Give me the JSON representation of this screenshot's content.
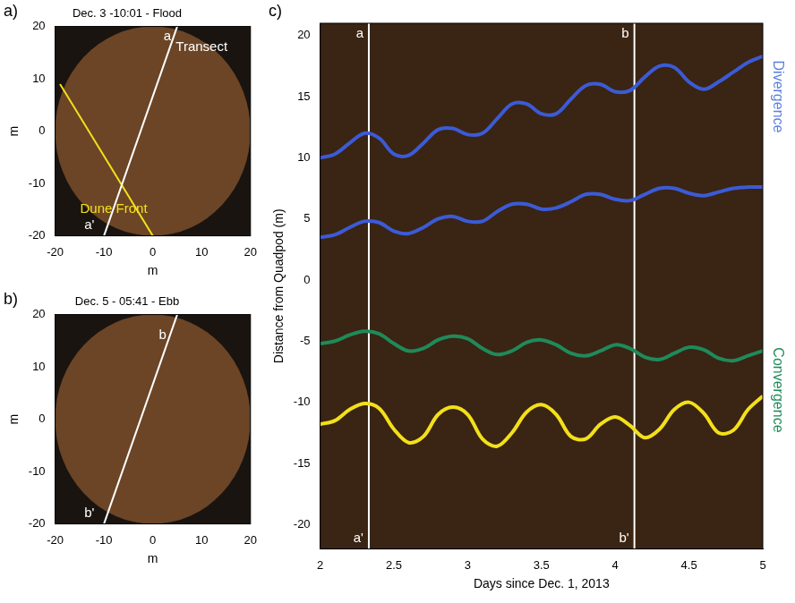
{
  "chart_data": [
    {
      "type": "line",
      "panel": "a)",
      "title": "Dec. 3 -10:01 - Flood",
      "x_label": "m",
      "y_label": "m",
      "xlim": [
        -20,
        20
      ],
      "xticks": [
        -20,
        -10,
        0,
        10,
        20
      ],
      "ylim": [
        -20,
        20
      ],
      "yticks": [
        -20,
        -10,
        0,
        10,
        20
      ],
      "grid": false,
      "legend": "none",
      "series": [
        {
          "color": "#ffffff",
          "x": [
            -10,
            5
          ],
          "values": [
            -20,
            20
          ]
        },
        {
          "color": "#f2e01a",
          "x": [
            -19,
            0
          ],
          "values": [
            9,
            -20
          ]
        }
      ],
      "annotations": [
        {
          "text": "a",
          "x": 3,
          "y": 18,
          "color": "#ffffff"
        },
        {
          "text": "Transect",
          "x": 10,
          "y": 16,
          "color": "#ffffff"
        },
        {
          "text": "a'",
          "x": -13,
          "y": -18,
          "color": "#ffffff"
        },
        {
          "text": "Dune Front",
          "x": -8,
          "y": -15,
          "color": "#f2e01a"
        }
      ]
    },
    {
      "type": "line",
      "panel": "b)",
      "title": "Dec. 5 - 05:41 - Ebb",
      "x_label": "m",
      "y_label": "m",
      "xlim": [
        -20,
        20
      ],
      "xticks": [
        -20,
        -10,
        0,
        10,
        20
      ],
      "ylim": [
        -20,
        20
      ],
      "yticks": [
        -20,
        -10,
        0,
        10,
        20
      ],
      "grid": false,
      "legend": "none",
      "series": [
        {
          "color": "#ffffff",
          "x": [
            -10,
            5
          ],
          "values": [
            -20,
            20
          ]
        }
      ],
      "annotations": [
        {
          "text": "b",
          "x": 2,
          "y": 16,
          "color": "#ffffff"
        },
        {
          "text": "b'",
          "x": -13,
          "y": -18,
          "color": "#ffffff"
        }
      ]
    },
    {
      "type": "line",
      "panel": "c)",
      "x_label": "Days since Dec. 1, 2013",
      "y_label": "Distance from Quadpod (m)",
      "xlim": [
        2,
        5
      ],
      "xticks": [
        2,
        2.5,
        3,
        3.5,
        4,
        4.5,
        5
      ],
      "ylim": [
        -22,
        21
      ],
      "yticks": [
        -20,
        -15,
        -10,
        -5,
        0,
        5,
        10,
        15,
        20
      ],
      "grid": false,
      "legend": "none",
      "x": [
        2.0,
        2.1,
        2.2,
        2.3,
        2.4,
        2.5,
        2.6,
        2.7,
        2.8,
        2.9,
        3.0,
        3.1,
        3.2,
        3.3,
        3.4,
        3.5,
        3.6,
        3.7,
        3.8,
        3.9,
        4.0,
        4.1,
        4.2,
        4.3,
        4.4,
        4.5,
        4.6,
        4.7,
        4.8,
        4.9,
        5.0
      ],
      "series": [
        {
          "color": "#3b5bd6",
          "values": [
            10.0,
            10.3,
            11.2,
            12.0,
            11.6,
            10.3,
            10.2,
            11.2,
            12.3,
            12.4,
            11.9,
            12.0,
            13.2,
            14.4,
            14.4,
            13.6,
            13.6,
            14.8,
            15.9,
            16.0,
            15.4,
            15.5,
            16.6,
            17.5,
            17.4,
            16.2,
            15.6,
            16.2,
            17.0,
            17.8,
            18.3
          ]
        },
        {
          "color": "#3b5bd6",
          "values": [
            3.5,
            3.7,
            4.3,
            4.8,
            4.7,
            4.0,
            3.8,
            4.3,
            5.0,
            5.2,
            4.8,
            4.8,
            5.6,
            6.2,
            6.2,
            5.8,
            5.9,
            6.4,
            7.0,
            7.0,
            6.6,
            6.5,
            7.0,
            7.5,
            7.5,
            7.1,
            6.9,
            7.2,
            7.5,
            7.6,
            7.6
          ]
        },
        {
          "color": "#1f8a5a",
          "values": [
            -5.2,
            -5.0,
            -4.5,
            -4.2,
            -4.4,
            -5.2,
            -5.8,
            -5.6,
            -4.9,
            -4.6,
            -4.8,
            -5.6,
            -6.1,
            -5.8,
            -5.1,
            -4.9,
            -5.3,
            -6.0,
            -6.2,
            -5.8,
            -5.3,
            -5.6,
            -6.3,
            -6.5,
            -6.0,
            -5.5,
            -5.7,
            -6.4,
            -6.6,
            -6.2,
            -5.8
          ]
        },
        {
          "color": "#f2e01a",
          "values": [
            -11.8,
            -11.5,
            -10.6,
            -10.1,
            -10.5,
            -12.2,
            -13.3,
            -12.8,
            -11.0,
            -10.4,
            -11.0,
            -13.0,
            -13.6,
            -12.5,
            -10.8,
            -10.2,
            -11.0,
            -12.8,
            -13.0,
            -11.8,
            -11.2,
            -11.9,
            -12.9,
            -12.2,
            -10.6,
            -10.0,
            -10.9,
            -12.5,
            -12.3,
            -10.6,
            -9.5
          ]
        }
      ],
      "vlines": [
        {
          "x": 2.33,
          "top_label": "a",
          "bottom_label": "a'",
          "color": "#ffffff"
        },
        {
          "x": 4.13,
          "top_label": "b",
          "bottom_label": "b'",
          "color": "#ffffff"
        }
      ],
      "side_labels": [
        {
          "text": "Divergence",
          "y": 15,
          "color": "#5b7fe0"
        },
        {
          "text": "Convergence",
          "y": -9,
          "color": "#1f8a5a"
        }
      ]
    }
  ]
}
